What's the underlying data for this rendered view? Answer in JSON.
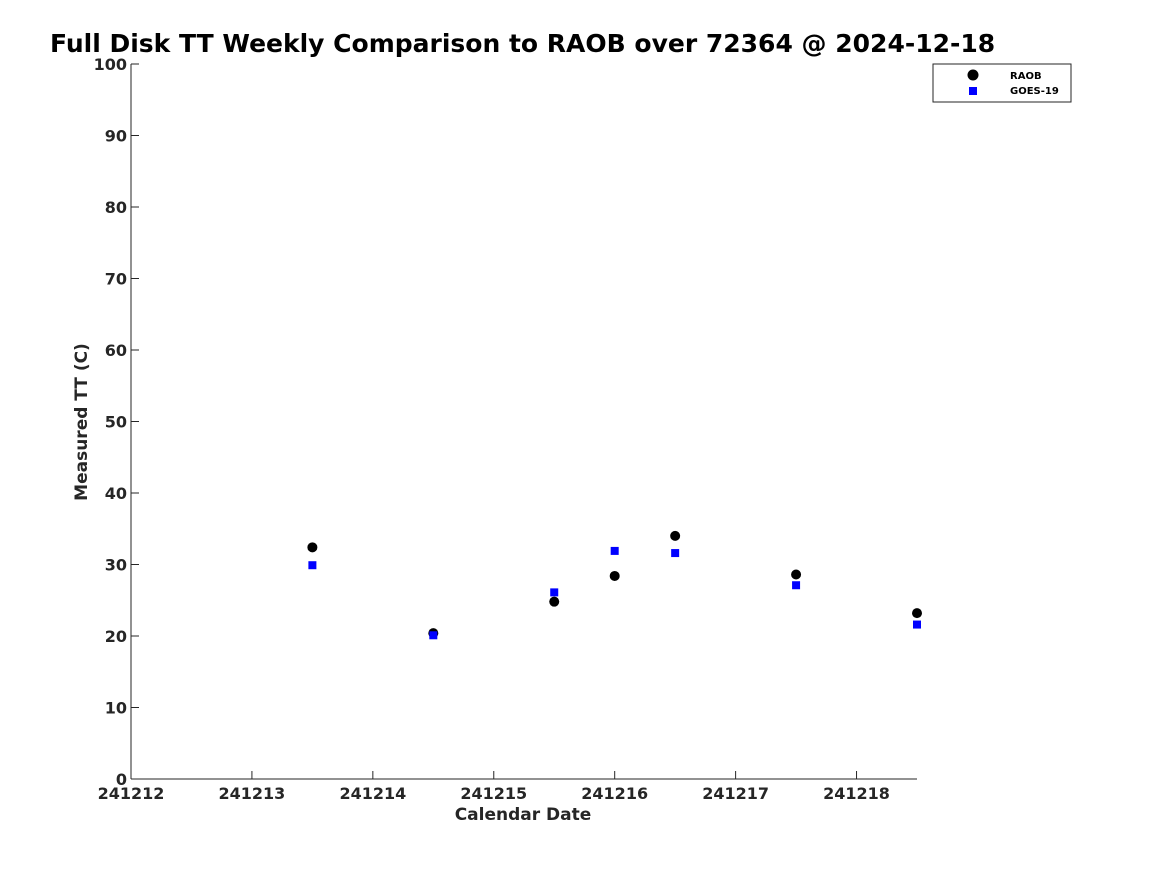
{
  "chart_data": {
    "type": "scatter",
    "title": "Full Disk TT Weekly Comparison to RAOB over 72364 @ 2024-12-18",
    "xlabel": "Calendar Date",
    "ylabel": "Measured TT (C)",
    "xlim": [
      241212,
      241218.5
    ],
    "ylim": [
      0,
      100
    ],
    "xticks": [
      241212,
      241213,
      241214,
      241215,
      241216,
      241217,
      241218
    ],
    "xtick_labels": [
      "241212",
      "241213",
      "241214",
      "241215",
      "241216",
      "241217",
      "241218"
    ],
    "yticks": [
      0,
      10,
      20,
      30,
      40,
      50,
      60,
      70,
      80,
      90,
      100
    ],
    "ytick_labels": [
      "0",
      "10",
      "20",
      "30",
      "40",
      "50",
      "60",
      "70",
      "80",
      "90",
      "100"
    ],
    "grid": false,
    "legend_position": "top-right",
    "series": [
      {
        "name": "RAOB",
        "marker": "circle",
        "color": "#000000",
        "x": [
          241213.5,
          241214.5,
          241215.5,
          241216.0,
          241216.5,
          241217.5,
          241218.5
        ],
        "y": [
          32.4,
          20.4,
          24.8,
          28.4,
          34.0,
          28.6,
          23.2
        ]
      },
      {
        "name": "GOES-19",
        "marker": "square",
        "color": "#0000ff",
        "x": [
          241213.5,
          241214.5,
          241215.5,
          241216.0,
          241216.5,
          241217.5,
          241218.5
        ],
        "y": [
          29.9,
          20.1,
          26.1,
          31.9,
          31.6,
          27.1,
          21.6
        ]
      }
    ]
  }
}
